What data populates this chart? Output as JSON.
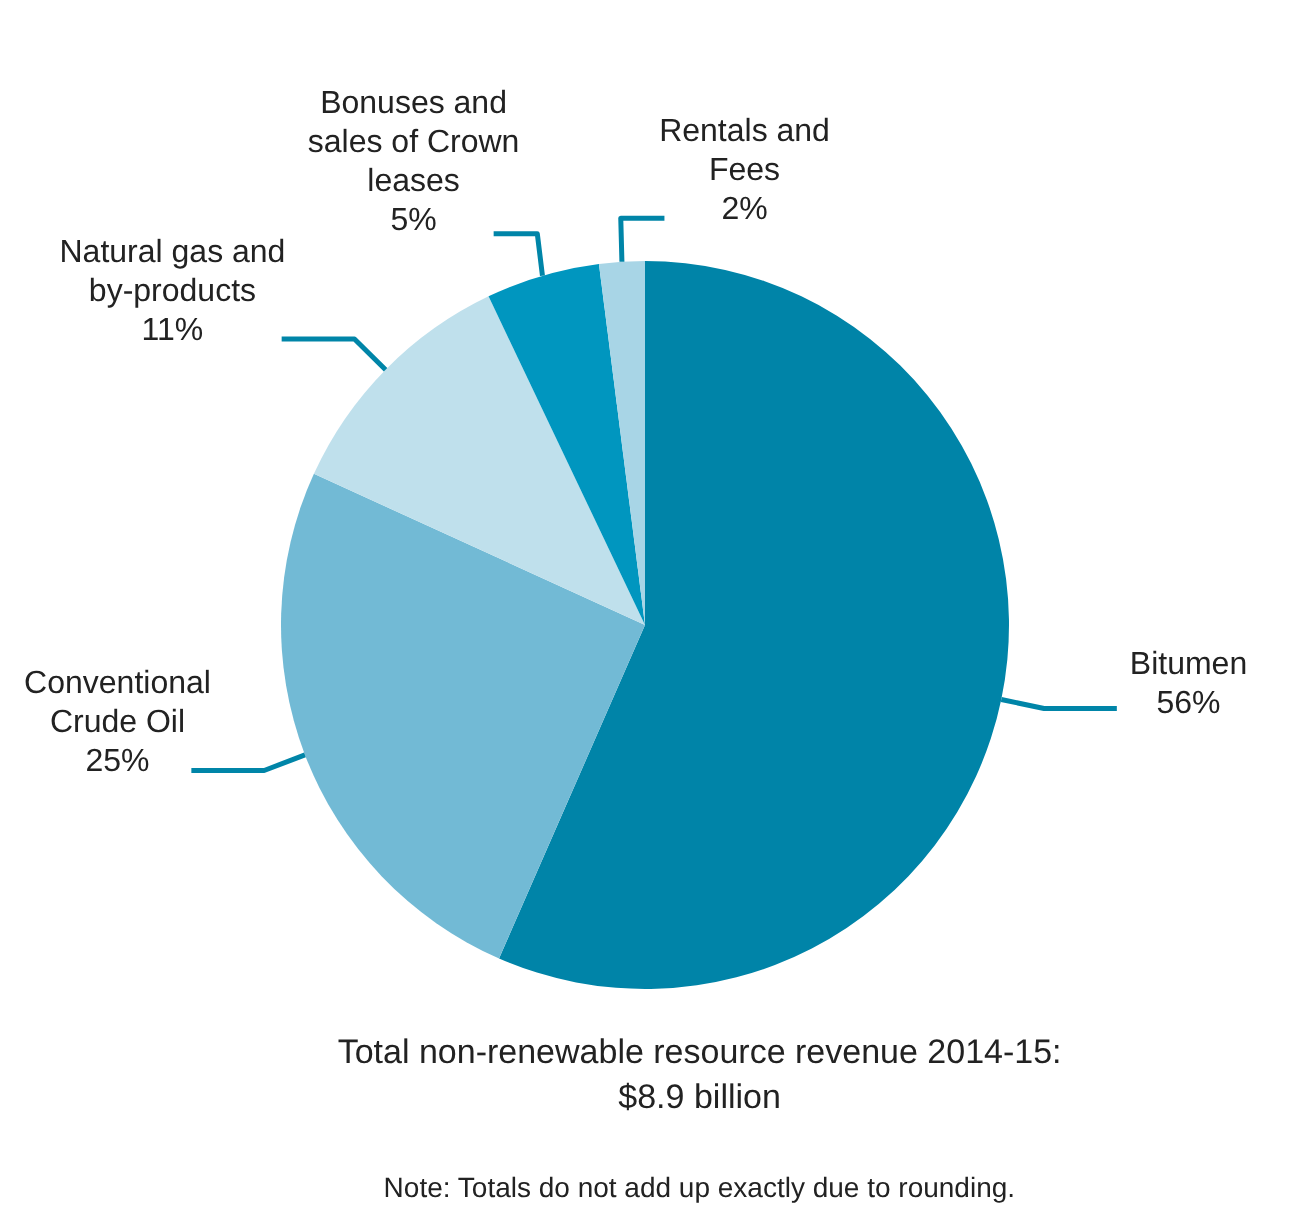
{
  "chart_data": {
    "type": "pie",
    "title": "Total non-renewable resource revenue 2014-15:\n$8.9 billion",
    "categories": [
      "Bitumen",
      "Conventional Crude Oil",
      "Natural gas and by-products",
      "Bonuses and sales of Crown leases",
      "Rentals and Fees"
    ],
    "values": [
      56,
      25,
      11,
      5,
      2
    ],
    "value_labels": [
      "56%",
      "25%",
      "11%",
      "5%",
      "2%"
    ],
    "colors": [
      "#0084a8",
      "#72bad5",
      "#bfe0ec",
      "#0096bf",
      "#a8d5e6"
    ],
    "annotations": [
      "Note: Totals do not add up exactly due to rounding."
    ]
  }
}
